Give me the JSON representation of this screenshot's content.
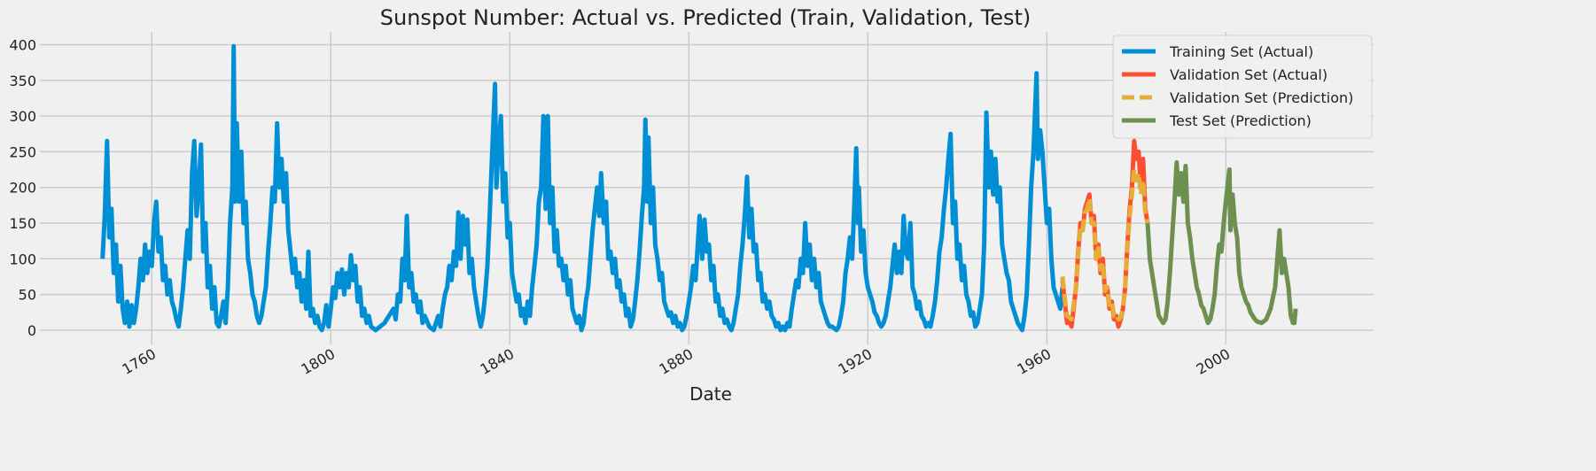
{
  "chart_data": {
    "type": "line",
    "title": "Sunspot Number: Actual vs. Predicted (Train, Validation, Test)",
    "xlabel": "Date",
    "xlim": [
      1735,
      2033
    ],
    "ylim": [
      -20,
      418
    ],
    "xticks": [
      1760,
      1800,
      1840,
      1880,
      1920,
      1960,
      2000
    ],
    "yticks": [
      0,
      50,
      100,
      150,
      200,
      250,
      300,
      350,
      400
    ],
    "grid": true,
    "legend": "upper right",
    "series": [
      {
        "name": "Training Set (Actual)",
        "color": "#008fd5",
        "dash": false,
        "x": [
          1749.0,
          1749.5,
          1750.0,
          1750.5,
          1751.0,
          1751.5,
          1752.0,
          1752.5,
          1753.0,
          1753.5,
          1754.0,
          1754.5,
          1755.0,
          1755.5,
          1756.0,
          1756.5,
          1757.0,
          1757.5,
          1758.0,
          1758.5,
          1759.0,
          1759.5,
          1760.0,
          1760.5,
          1761.0,
          1761.5,
          1762.0,
          1762.5,
          1763.0,
          1763.5,
          1764.0,
          1764.5,
          1765.0,
          1765.5,
          1766.0,
          1766.5,
          1767.0,
          1767.5,
          1768.0,
          1768.5,
          1769.0,
          1769.5,
          1770.0,
          1770.5,
          1771.0,
          1771.5,
          1772.0,
          1772.5,
          1773.0,
          1773.5,
          1774.0,
          1774.5,
          1775.0,
          1775.5,
          1776.0,
          1776.5,
          1777.0,
          1777.5,
          1778.0,
          1778.3,
          1778.6,
          1779.0,
          1779.5,
          1780.0,
          1780.5,
          1781.0,
          1781.5,
          1782.0,
          1782.5,
          1783.0,
          1783.5,
          1784.0,
          1784.5,
          1785.0,
          1785.5,
          1786.0,
          1786.5,
          1787.0,
          1787.5,
          1788.0,
          1788.5,
          1789.0,
          1789.5,
          1790.0,
          1790.5,
          1791.0,
          1791.5,
          1792.0,
          1792.5,
          1793.0,
          1793.5,
          1794.0,
          1794.5,
          1795.0,
          1795.5,
          1796.0,
          1796.5,
          1797.0,
          1797.5,
          1798.0,
          1798.5,
          1799.0,
          1799.5,
          1800.0,
          1800.5,
          1801.0,
          1801.5,
          1802.0,
          1802.5,
          1803.0,
          1803.5,
          1804.0,
          1804.5,
          1805.0,
          1805.5,
          1806.0,
          1806.5,
          1807.0,
          1807.5,
          1808.0,
          1808.5,
          1809.0,
          1810.0,
          1811.0,
          1812.0,
          1813.0,
          1814.0,
          1814.5,
          1815.0,
          1815.5,
          1816.0,
          1816.5,
          1817.0,
          1817.5,
          1818.0,
          1818.5,
          1819.0,
          1819.5,
          1820.0,
          1820.5,
          1821.0,
          1822.0,
          1823.0,
          1823.5,
          1824.0,
          1824.5,
          1825.0,
          1825.5,
          1826.0,
          1826.5,
          1827.0,
          1827.5,
          1828.0,
          1828.5,
          1829.0,
          1829.5,
          1830.0,
          1830.5,
          1831.0,
          1831.5,
          1832.0,
          1832.5,
          1833.0,
          1833.5,
          1834.0,
          1834.5,
          1835.0,
          1835.5,
          1836.0,
          1836.7,
          1837.0,
          1837.5,
          1838.0,
          1838.5,
          1839.0,
          1839.5,
          1840.0,
          1840.5,
          1841.0,
          1841.5,
          1842.0,
          1842.5,
          1843.0,
          1843.5,
          1844.0,
          1844.5,
          1845.0,
          1845.5,
          1846.0,
          1846.5,
          1847.0,
          1847.5,
          1848.0,
          1848.5,
          1849.0,
          1849.5,
          1850.0,
          1850.5,
          1851.0,
          1851.5,
          1852.0,
          1852.5,
          1853.0,
          1853.5,
          1854.0,
          1854.5,
          1855.0,
          1855.5,
          1856.0,
          1856.5,
          1857.0,
          1857.5,
          1858.0,
          1858.5,
          1859.0,
          1859.5,
          1860.0,
          1860.4,
          1861.0,
          1861.5,
          1862.0,
          1862.5,
          1863.0,
          1863.5,
          1864.0,
          1864.5,
          1865.0,
          1865.5,
          1866.0,
          1866.5,
          1867.0,
          1867.5,
          1868.0,
          1868.5,
          1869.0,
          1869.5,
          1870.0,
          1870.3,
          1870.7,
          1871.0,
          1871.5,
          1872.0,
          1872.5,
          1873.0,
          1873.5,
          1874.0,
          1874.5,
          1875.0,
          1875.5,
          1876.0,
          1876.5,
          1877.0,
          1877.5,
          1878.0,
          1878.5,
          1879.0,
          1879.5,
          1880.0,
          1880.5,
          1881.0,
          1881.5,
          1882.0,
          1882.4,
          1883.0,
          1883.5,
          1884.0,
          1884.5,
          1885.0,
          1885.5,
          1886.0,
          1886.5,
          1887.0,
          1887.5,
          1888.0,
          1888.5,
          1889.0,
          1889.5,
          1890.0,
          1890.5,
          1891.0,
          1891.5,
          1892.0,
          1892.5,
          1893.0,
          1893.5,
          1894.0,
          1894.5,
          1895.0,
          1895.5,
          1896.0,
          1896.5,
          1897.0,
          1897.5,
          1898.0,
          1898.5,
          1899.0,
          1899.5,
          1900.0,
          1900.5,
          1901.0,
          1901.5,
          1902.0,
          1902.5,
          1903.0,
          1903.5,
          1904.0,
          1904.5,
          1905.0,
          1905.5,
          1906.0,
          1906.5,
          1907.0,
          1907.5,
          1908.0,
          1908.5,
          1909.0,
          1909.5,
          1910.0,
          1910.5,
          1911.0,
          1911.5,
          1912.0,
          1913.0,
          1913.5,
          1914.0,
          1914.5,
          1915.0,
          1915.5,
          1916.0,
          1916.5,
          1917.0,
          1917.4,
          1917.8,
          1918.0,
          1918.5,
          1919.0,
          1919.5,
          1920.0,
          1920.5,
          1921.0,
          1921.5,
          1922.0,
          1922.5,
          1923.0,
          1923.5,
          1924.0,
          1924.5,
          1925.0,
          1925.5,
          1926.0,
          1926.5,
          1927.0,
          1927.5,
          1928.0,
          1928.5,
          1929.0,
          1929.5,
          1930.0,
          1930.5,
          1931.0,
          1931.5,
          1932.0,
          1932.5,
          1933.0,
          1933.5,
          1934.0,
          1934.5,
          1935.0,
          1935.5,
          1936.0,
          1936.5,
          1937.0,
          1937.5,
          1938.0,
          1938.5,
          1939.0,
          1939.5,
          1940.0,
          1940.5,
          1941.0,
          1941.5,
          1942.0,
          1942.5,
          1943.0,
          1943.5,
          1944.0,
          1944.5,
          1945.0,
          1945.5,
          1946.0,
          1946.5,
          1947.0,
          1947.5,
          1948.0,
          1948.5,
          1949.0,
          1949.5,
          1950.0,
          1950.5,
          1951.0,
          1951.5,
          1952.0,
          1952.5,
          1953.0,
          1953.5,
          1954.0,
          1954.5,
          1955.0,
          1955.5,
          1956.0,
          1956.5,
          1957.0,
          1957.7,
          1958.0,
          1958.5,
          1959.0,
          1959.5,
          1960.0,
          1960.5,
          1961.0,
          1961.5,
          1962.0,
          1962.5,
          1963.0,
          1963.5
        ],
        "values": [
          100,
          160,
          265,
          130,
          170,
          80,
          120,
          40,
          90,
          30,
          10,
          40,
          5,
          35,
          10,
          30,
          60,
          100,
          70,
          120,
          80,
          110,
          90,
          150,
          180,
          110,
          130,
          70,
          90,
          50,
          70,
          40,
          30,
          15,
          5,
          30,
          60,
          100,
          140,
          100,
          220,
          265,
          160,
          200,
          260,
          110,
          150,
          60,
          90,
          30,
          60,
          10,
          5,
          20,
          40,
          10,
          60,
          150,
          200,
          398,
          180,
          290,
          180,
          250,
          150,
          180,
          100,
          80,
          50,
          40,
          20,
          10,
          20,
          40,
          60,
          110,
          150,
          200,
          180,
          290,
          200,
          240,
          180,
          220,
          140,
          110,
          80,
          100,
          60,
          80,
          40,
          70,
          30,
          110,
          20,
          30,
          10,
          20,
          5,
          0,
          10,
          35,
          5,
          30,
          60,
          45,
          80,
          60,
          85,
          50,
          80,
          60,
          105,
          70,
          90,
          40,
          60,
          20,
          30,
          10,
          20,
          5,
          0,
          5,
          10,
          20,
          30,
          15,
          50,
          40,
          100,
          70,
          160,
          60,
          80,
          40,
          50,
          25,
          40,
          10,
          20,
          5,
          0,
          10,
          20,
          5,
          30,
          50,
          60,
          90,
          70,
          110,
          90,
          165,
          100,
          160,
          120,
          155,
          80,
          100,
          60,
          40,
          20,
          5,
          20,
          50,
          90,
          160,
          240,
          345,
          200,
          260,
          300,
          180,
          220,
          130,
          150,
          80,
          60,
          40,
          50,
          20,
          30,
          10,
          40,
          20,
          60,
          90,
          120,
          180,
          200,
          300,
          170,
          300,
          150,
          200,
          110,
          140,
          90,
          100,
          70,
          90,
          50,
          70,
          30,
          20,
          10,
          20,
          0,
          10,
          40,
          60,
          100,
          140,
          170,
          200,
          160,
          220,
          150,
          180,
          100,
          110,
          80,
          100,
          60,
          70,
          40,
          50,
          20,
          30,
          5,
          15,
          40,
          70,
          110,
          160,
          200,
          295,
          180,
          270,
          150,
          200,
          120,
          100,
          70,
          80,
          40,
          30,
          20,
          25,
          10,
          20,
          5,
          10,
          0,
          5,
          20,
          40,
          60,
          90,
          70,
          120,
          160,
          100,
          155,
          110,
          120,
          70,
          90,
          40,
          50,
          20,
          30,
          10,
          15,
          5,
          0,
          10,
          30,
          50,
          90,
          120,
          160,
          215,
          130,
          170,
          110,
          120,
          70,
          80,
          40,
          50,
          30,
          40,
          20,
          15,
          5,
          10,
          0,
          5,
          0,
          10,
          5,
          30,
          50,
          70,
          60,
          100,
          80,
          150,
          90,
          120,
          70,
          100,
          60,
          80,
          40,
          30,
          20,
          10,
          5,
          5,
          0,
          5,
          20,
          40,
          80,
          100,
          130,
          100,
          180,
          255,
          150,
          200,
          110,
          140,
          80,
          60,
          50,
          40,
          25,
          20,
          10,
          5,
          10,
          20,
          40,
          60,
          90,
          120,
          80,
          110,
          80,
          160,
          110,
          100,
          150,
          60,
          50,
          30,
          40,
          20,
          15,
          5,
          10,
          5,
          20,
          40,
          70,
          110,
          130,
          170,
          200,
          240,
          275,
          150,
          180,
          100,
          120,
          70,
          90,
          50,
          40,
          20,
          25,
          5,
          10,
          30,
          50,
          120,
          305,
          200,
          250,
          190,
          240,
          180,
          200,
          120,
          100,
          80,
          70,
          40,
          30,
          20,
          10,
          5,
          0,
          20,
          50,
          120,
          200,
          250,
          360,
          240,
          280,
          250,
          200,
          150,
          170,
          100,
          60,
          50,
          40,
          30,
          60
        ]
      },
      {
        "name": "Validation Set (Actual)",
        "color": "#fc4f30",
        "dash": false,
        "x": [
          1963.5,
          1964,
          1964.5,
          1965,
          1965.5,
          1966,
          1966.5,
          1967,
          1967.5,
          1968,
          1968.5,
          1969,
          1969.5,
          1970,
          1970.5,
          1971,
          1971.5,
          1972,
          1972.5,
          1973,
          1973.5,
          1974,
          1974.5,
          1975,
          1975.5,
          1976,
          1976.5,
          1977,
          1977.5,
          1978,
          1978.5,
          1979,
          1979.5,
          1980,
          1980.5,
          1981,
          1981.5,
          1982,
          1982.5
        ],
        "values": [
          70,
          40,
          10,
          15,
          5,
          30,
          60,
          110,
          150,
          140,
          170,
          180,
          190,
          150,
          160,
          100,
          120,
          80,
          100,
          50,
          60,
          30,
          40,
          15,
          20,
          5,
          15,
          30,
          60,
          120,
          170,
          200,
          265,
          240,
          250,
          200,
          240,
          170,
          150
        ]
      },
      {
        "name": "Validation Set (Prediction)",
        "color": "#e5ae38",
        "dash": true,
        "x": [
          1963.5,
          1964,
          1964.5,
          1965,
          1965.5,
          1966,
          1966.5,
          1967,
          1967.5,
          1968,
          1968.5,
          1969,
          1969.5,
          1970,
          1970.5,
          1971,
          1971.5,
          1972,
          1972.5,
          1973,
          1973.5,
          1974,
          1974.5,
          1975,
          1975.5,
          1976,
          1976.5,
          1977,
          1977.5,
          1978,
          1978.5,
          1979,
          1979.5,
          1980,
          1980.5,
          1981,
          1981.5,
          1982,
          1982.5
        ],
        "values": [
          75,
          45,
          20,
          18,
          15,
          35,
          60,
          105,
          145,
          140,
          165,
          170,
          185,
          150,
          150,
          100,
          115,
          85,
          95,
          55,
          60,
          35,
          40,
          20,
          22,
          15,
          18,
          30,
          60,
          115,
          160,
          190,
          225,
          210,
          220,
          190,
          210,
          165,
          150
        ]
      },
      {
        "name": "Test Set (Prediction)",
        "color": "#6d904f",
        "dash": false,
        "x": [
          1982.5,
          1983,
          1983.5,
          1984,
          1984.5,
          1985,
          1985.5,
          1986,
          1986.5,
          1987,
          1987.5,
          1988,
          1988.5,
          1989,
          1989.5,
          1990,
          1990.5,
          1991,
          1991.5,
          1992,
          1992.5,
          1993,
          1993.5,
          1994,
          1994.5,
          1995,
          1995.5,
          1996,
          1996.5,
          1997,
          1997.5,
          1998,
          1998.5,
          1999,
          1999.5,
          2000,
          2000.5,
          2000.8,
          2001,
          2001.5,
          2002,
          2002.5,
          2003,
          2003.5,
          2004,
          2004.5,
          2005,
          2005.5,
          2006,
          2006.5,
          2007,
          2008,
          2009,
          2010,
          2011,
          2011.5,
          2012,
          2012.5,
          2013,
          2013.5,
          2014,
          2014.5,
          2015,
          2015.3,
          2015.6
        ],
        "values": [
          150,
          100,
          80,
          60,
          40,
          20,
          15,
          10,
          15,
          40,
          80,
          130,
          180,
          235,
          190,
          220,
          180,
          230,
          150,
          130,
          100,
          80,
          60,
          50,
          35,
          30,
          20,
          10,
          15,
          30,
          50,
          90,
          120,
          110,
          150,
          180,
          210,
          225,
          140,
          190,
          150,
          130,
          80,
          60,
          50,
          40,
          35,
          25,
          20,
          15,
          12,
          10,
          15,
          30,
          60,
          100,
          140,
          80,
          100,
          80,
          60,
          20,
          10,
          10,
          30
        ]
      }
    ]
  }
}
